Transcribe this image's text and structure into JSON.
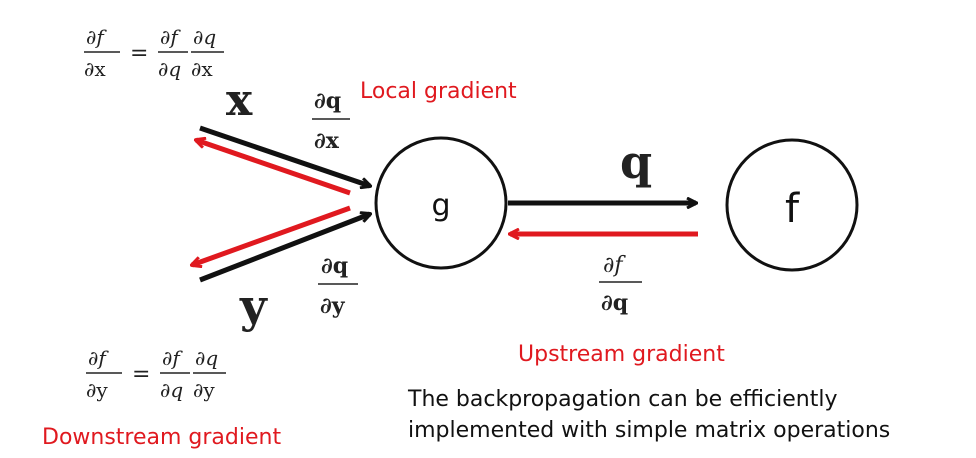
{
  "colors": {
    "forward_arrow": "#111111",
    "backward_arrow": "#e0191f",
    "red_text": "#e0191f",
    "text": "#111111"
  },
  "nodes": {
    "g_label": "g",
    "f_label": "f"
  },
  "variables": {
    "x": "x",
    "y": "y",
    "q": "q"
  },
  "formulas": {
    "df_dx": {
      "num": "∂f",
      "den": "∂x",
      "rhs1_num": "∂f",
      "rhs1_den": "∂q",
      "rhs2_num": "∂q",
      "rhs2_den": "∂x"
    },
    "df_dy": {
      "num": "∂f",
      "den": "∂y",
      "rhs1_num": "∂f",
      "rhs1_den": "∂q",
      "rhs2_num": "∂q",
      "rhs2_den": "∂y"
    },
    "dq_dx": {
      "num": "∂q",
      "den": "∂x"
    },
    "dq_dy": {
      "num": "∂q",
      "den": "∂y"
    },
    "df_dq": {
      "num": "∂f",
      "den": "∂q"
    },
    "equals": "="
  },
  "labels": {
    "local_gradient": "Local gradient",
    "upstream_gradient": "Upstream gradient",
    "downstream_gradient": "Downstream gradient"
  },
  "caption": {
    "line1": "The backpropagation can be efficiently",
    "line2": "implemented with simple matrix operations"
  }
}
